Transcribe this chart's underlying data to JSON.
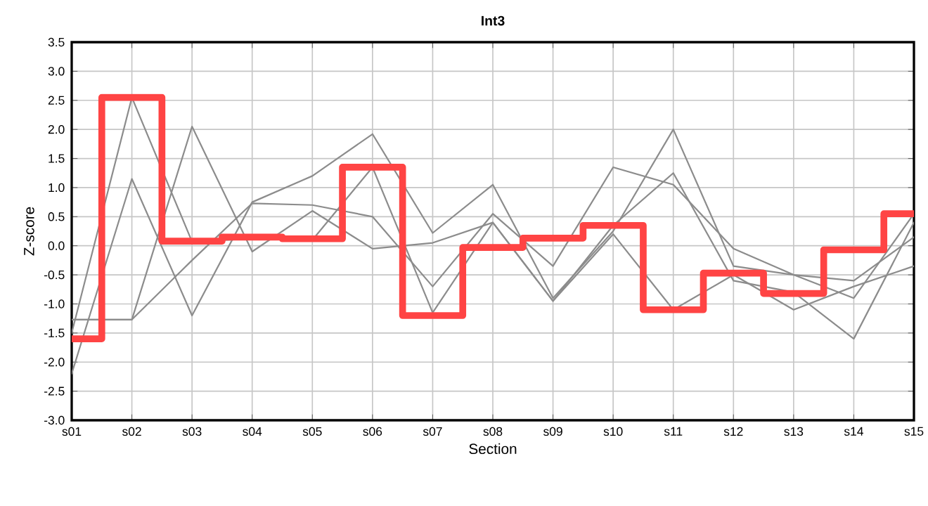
{
  "chart_data": {
    "type": "line",
    "title": "Int3",
    "xlabel": "Section",
    "ylabel": "Z-score",
    "categories": [
      "s01",
      "s02",
      "s03",
      "s04",
      "s05",
      "s06",
      "s07",
      "s08",
      "s09",
      "s10",
      "s11",
      "s12",
      "s13",
      "s14",
      "s15"
    ],
    "series": [
      {
        "color": "#8c8c8c",
        "values": [
          -1.5,
          2.55,
          0.07,
          0.12,
          0.1,
          1.35,
          -1.15,
          0.4,
          -0.95,
          0.35,
          1.25,
          -0.6,
          -0.8,
          -1.6,
          0.4
        ]
      },
      {
        "color": "#8c8c8c",
        "values": [
          -2.2,
          1.15,
          -1.2,
          0.75,
          1.2,
          1.92,
          0.22,
          1.05,
          -0.9,
          0.25,
          2.0,
          -0.35,
          -0.5,
          -0.9,
          0.55
        ]
      },
      {
        "color": "#8c8c8c",
        "values": [
          -1.27,
          -1.27,
          -0.25,
          0.73,
          0.7,
          0.5,
          -0.7,
          0.55,
          -0.35,
          1.35,
          1.05,
          -0.05,
          -0.5,
          -0.6,
          0.15
        ]
      },
      {
        "color": "#8c8c8c",
        "values": [
          -1.27,
          -1.27,
          2.05,
          -0.1,
          0.6,
          -0.05,
          0.05,
          0.4,
          -0.95,
          0.2,
          -1.1,
          -0.5,
          -1.1,
          -0.7,
          -0.35
        ]
      },
      {
        "type": "step",
        "color": "#ff4444",
        "values": [
          -1.6,
          2.55,
          0.08,
          0.15,
          0.12,
          1.35,
          -1.2,
          -0.03,
          0.13,
          0.35,
          -1.1,
          -0.47,
          -0.82,
          -0.07,
          0.55
        ]
      }
    ],
    "ylim": [
      -3,
      3.5
    ],
    "yticks": [
      {
        "value": -3,
        "label": "-3.0"
      },
      {
        "value": -2.5,
        "label": "-2.5"
      },
      {
        "value": -2,
        "label": "-2.0"
      },
      {
        "value": -1.5,
        "label": "-1.5"
      },
      {
        "value": -1,
        "label": "-1.0"
      },
      {
        "value": -0.5,
        "label": "-0.5"
      },
      {
        "value": 0,
        "label": "0.0"
      },
      {
        "value": 0.5,
        "label": "0.5"
      },
      {
        "value": 1,
        "label": "1.0"
      },
      {
        "value": 1.5,
        "label": "1.5"
      },
      {
        "value": 2,
        "label": "2.0"
      },
      {
        "value": 2.5,
        "label": "2.5"
      },
      {
        "value": 3,
        "label": "3.0"
      },
      {
        "value": 3.5,
        "label": "3.5"
      }
    ],
    "grid": true,
    "marker": "none",
    "line_style": "solid"
  }
}
